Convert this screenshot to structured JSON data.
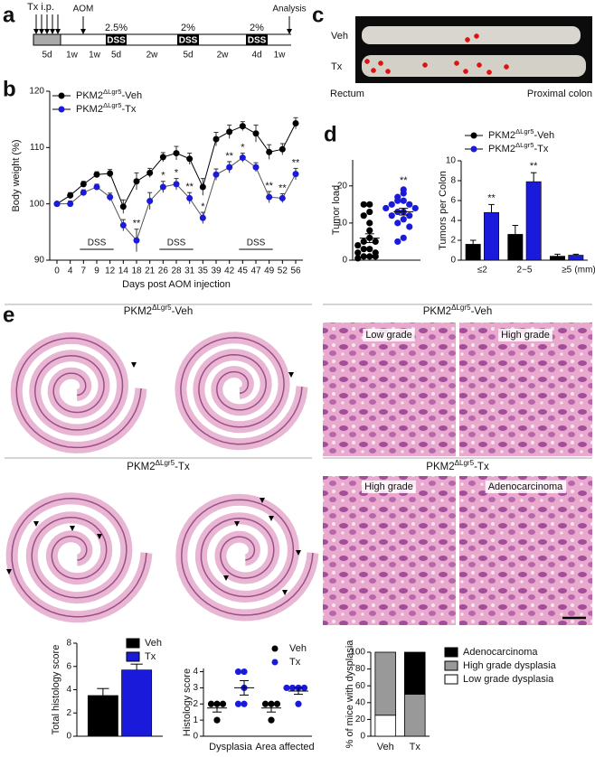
{
  "panel_labels": [
    "a",
    "b",
    "c",
    "d",
    "e"
  ],
  "timeline": {
    "tx_label": "Tx i.p.",
    "aom_label": "AOM",
    "analysis_label": "Analysis",
    "durations": [
      "5d",
      "1w",
      "1w",
      "5d",
      "2w",
      "5d",
      "2w",
      "4d",
      "1w"
    ],
    "dss": [
      {
        "label": "DSS",
        "dose": "2.5%"
      },
      {
        "label": "DSS",
        "dose": "2%"
      },
      {
        "label": "DSS",
        "dose": "2%"
      }
    ]
  },
  "photo": {
    "rows": [
      "Veh",
      "Tx"
    ],
    "left": "Rectum",
    "right": "Proximal colon"
  },
  "histology": {
    "veh_title": "PKM2ΔLgr5-Veh",
    "tx_title": "PKM2ΔLgr5-Tx",
    "veh_zoom_title": "PKM2ΔLgr5-Veh",
    "tx_zoom_title": "PKM2ΔLgr5-Tx",
    "veh_panels": [
      "Low grade",
      "High grade"
    ],
    "tx_panels": [
      "High grade",
      "Adenocarcinoma"
    ]
  },
  "chart_data": [
    {
      "type": "line",
      "x_label": "Days post AOM injection",
      "y_label": "Body weight (%)",
      "categories": [
        0,
        4,
        7,
        9,
        12,
        14,
        18,
        21,
        26,
        28,
        31,
        35,
        39,
        42,
        45,
        47,
        49,
        52,
        56
      ],
      "ylim": [
        90,
        120
      ],
      "yticks": [
        90,
        100,
        110,
        120
      ],
      "legend": "upper left",
      "series": [
        {
          "name": "PKM2ΔLgr5-Veh",
          "color": "#000000",
          "values": [
            100,
            101.5,
            103.5,
            105.2,
            105.4,
            99.5,
            104,
            105.5,
            108.3,
            109,
            108,
            103,
            111.5,
            112.8,
            113.8,
            112.5,
            109.2,
            109.7,
            114.3
          ],
          "errors": [
            0,
            0.5,
            0.5,
            0.5,
            0.7,
            1.2,
            1.5,
            0.8,
            0.8,
            1.2,
            1,
            1.5,
            1.2,
            1.2,
            0.8,
            1.5,
            1.3,
            1,
            1
          ]
        },
        {
          "name": "PKM2ΔLgr5-Tx",
          "color": "#1a1adb",
          "values": [
            100,
            100,
            102,
            103,
            101.2,
            96.2,
            93.5,
            100.5,
            103,
            103.5,
            101,
            97.5,
            105.2,
            106.5,
            108.2,
            106.5,
            101.2,
            101,
            105.3
          ],
          "errors": [
            0,
            0.5,
            0.5,
            0.5,
            0.7,
            1,
            2,
            1.5,
            1,
            1,
            1,
            1,
            1,
            1,
            0.8,
            0.8,
            1,
            0.8,
            1
          ]
        }
      ],
      "annotations": [
        {
          "x": 18,
          "text": "**"
        },
        {
          "x": 26,
          "text": "*"
        },
        {
          "x": 28,
          "text": "*"
        },
        {
          "x": 31,
          "text": "**"
        },
        {
          "x": 35,
          "text": "*"
        },
        {
          "x": 42,
          "text": "**"
        },
        {
          "x": 45,
          "text": "*"
        },
        {
          "x": 49,
          "text": "**"
        },
        {
          "x": 52,
          "text": "**"
        },
        {
          "x": 56,
          "text": "**"
        }
      ],
      "periods": [
        {
          "text": "DSS",
          "from": 7,
          "to": 12
        },
        {
          "text": "DSS",
          "from": 26,
          "to": 31
        },
        {
          "text": "DSS",
          "from": 45,
          "to": 49
        }
      ]
    },
    {
      "type": "strip",
      "y_label": "Tumor load",
      "categories": [
        null
      ],
      "ylim": [
        0,
        27
      ],
      "yticks": [
        0,
        10,
        20
      ],
      "series": [
        {
          "color": "#000000",
          "values": [
            [
              15,
              15,
              13,
              12,
              10,
              8,
              6,
              5,
              5,
              4,
              3,
              3,
              2,
              2,
              1,
              1,
              1,
              0.5
            ]
          ]
        },
        {
          "color": "#1a1adb",
          "values": [
            [
              19,
              18,
              17,
              16,
              16,
              15,
              15,
              14,
              14,
              13,
              13,
              12,
              12,
              11,
              10,
              9,
              6,
              5
            ]
          ],
          "annotations": [
            "**"
          ]
        }
      ]
    },
    {
      "type": "bar",
      "y_label": "Tumors per Colon",
      "categories": [
        "≤2",
        "2−5",
        "≥5"
      ],
      "x_unit": "(mm)",
      "ylim": [
        0,
        10
      ],
      "yticks": [
        0,
        2,
        4,
        6,
        8,
        10
      ],
      "legend": "above",
      "series": [
        {
          "name": "PKM2ΔLgr5-Veh",
          "color": "#000000",
          "values": [
            1.6,
            2.6,
            0.4
          ],
          "errors": [
            0.4,
            0.9,
            0.2
          ]
        },
        {
          "name": "PKM2ΔLgr5-Tx",
          "color": "#1a1adb",
          "values": [
            4.8,
            7.9,
            0.5
          ],
          "errors": [
            0.8,
            0.9,
            0.1
          ],
          "annotations": [
            "**",
            "**",
            null
          ]
        }
      ]
    },
    {
      "type": "bar",
      "y_label": "Total histology score",
      "categories": [
        null
      ],
      "ylim": [
        0,
        8
      ],
      "yticks": [
        0,
        2,
        4,
        6,
        8
      ],
      "legend": "upper right",
      "series": [
        {
          "name": "Veh",
          "color": "#000000",
          "values": [
            3.5
          ],
          "errors": [
            0.6
          ]
        },
        {
          "name": "Tx",
          "color": "#1a1adb",
          "values": [
            5.7
          ],
          "errors": [
            0.5
          ],
          "annotations": [
            "*"
          ]
        }
      ]
    },
    {
      "type": "strip",
      "y_label": "Histology score",
      "categories": [
        "Dysplasia",
        "Area affected"
      ],
      "ylim": [
        0,
        4.2
      ],
      "yticks": [
        0,
        1,
        2,
        3,
        4
      ],
      "legend": "upper right",
      "series": [
        {
          "name": "Veh",
          "color": "#000000",
          "values": [
            [
              2,
              2,
              2,
              1
            ],
            [
              2,
              2,
              2,
              1
            ]
          ]
        },
        {
          "name": "Tx",
          "color": "#1a1adb",
          "values": [
            [
              4,
              4,
              3,
              2,
              2
            ],
            [
              3,
              3,
              3,
              2,
              3
            ]
          ]
        }
      ]
    },
    {
      "type": "stacked_bar",
      "y_label": "% of mice with dysplasia",
      "categories": [
        "Veh",
        "Tx"
      ],
      "ylim": [
        0,
        100
      ],
      "yticks": [
        0,
        20,
        40,
        60,
        80,
        100
      ],
      "legend": "right",
      "series": [
        {
          "name": "Low grade dysplasia",
          "color": "#ffffff",
          "values": [
            25,
            0
          ]
        },
        {
          "name": "High grade dysplasia",
          "color": "#999999",
          "values": [
            75,
            50
          ]
        },
        {
          "name": "Adenocarcinoma",
          "color": "#000000",
          "values": [
            0,
            50
          ]
        }
      ]
    }
  ]
}
